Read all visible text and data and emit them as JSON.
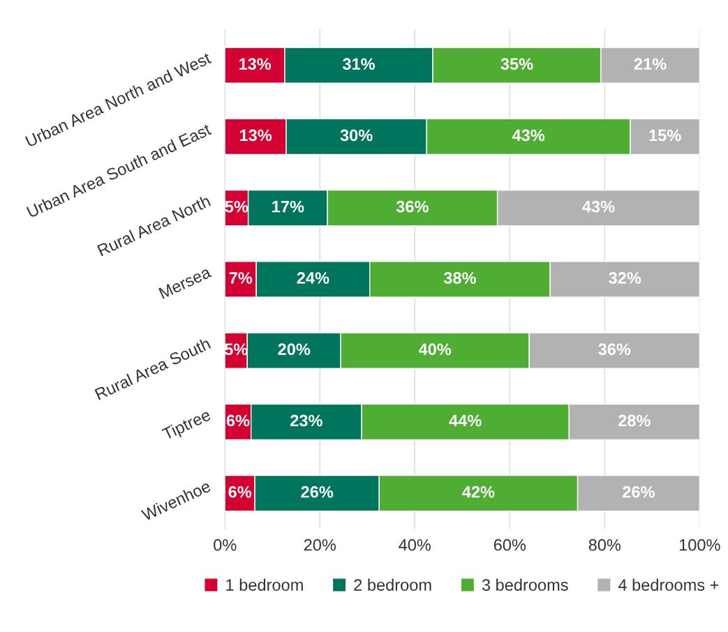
{
  "chart_data": {
    "type": "bar",
    "orientation": "horizontal",
    "stacked": true,
    "categories": [
      "Urban Area North and West",
      "Urban Area South and East",
      "Rural Area North",
      "Mersea",
      "Rural Area South",
      "Tiptree",
      "Wivenhoe"
    ],
    "series": [
      {
        "name": "1 bedroom",
        "color": "#d50032",
        "values": [
          12.6,
          12.9,
          4.9,
          6.6,
          4.7,
          5.5,
          6.3
        ],
        "value_labels": [
          "13%",
          "13%",
          "5%",
          "7%",
          "5%",
          "6%",
          "6%"
        ]
      },
      {
        "name": "2 bedroom",
        "color": "#00755e",
        "values": [
          31.2,
          29.6,
          16.7,
          23.9,
          19.7,
          23.3,
          26.2
        ],
        "value_labels": [
          "31%",
          "30%",
          "17%",
          "24%",
          "20%",
          "23%",
          "26%"
        ]
      },
      {
        "name": "3 bedrooms",
        "color": "#4fad33",
        "values": [
          35.4,
          42.9,
          35.8,
          38.0,
          39.7,
          43.7,
          41.8
        ],
        "value_labels": [
          "35%",
          "43%",
          "36%",
          "38%",
          "40%",
          "44%",
          "42%"
        ]
      },
      {
        "name": "4 bedrooms +",
        "color": "#b2b2b2",
        "values": [
          20.8,
          14.6,
          42.6,
          31.5,
          35.9,
          27.5,
          25.7
        ],
        "value_labels": [
          "21%",
          "15%",
          "43%",
          "32%",
          "36%",
          "28%",
          "26%"
        ]
      }
    ],
    "xlim": [
      0,
      100
    ],
    "xticks": [
      {
        "value": 0,
        "label": "0%"
      },
      {
        "value": 20,
        "label": "20%"
      },
      {
        "value": 40,
        "label": "40%"
      },
      {
        "value": 60,
        "label": "60%"
      },
      {
        "value": 80,
        "label": "80%"
      },
      {
        "value": 100,
        "label": "100%"
      }
    ],
    "grid": "x",
    "legend": "bottom"
  }
}
